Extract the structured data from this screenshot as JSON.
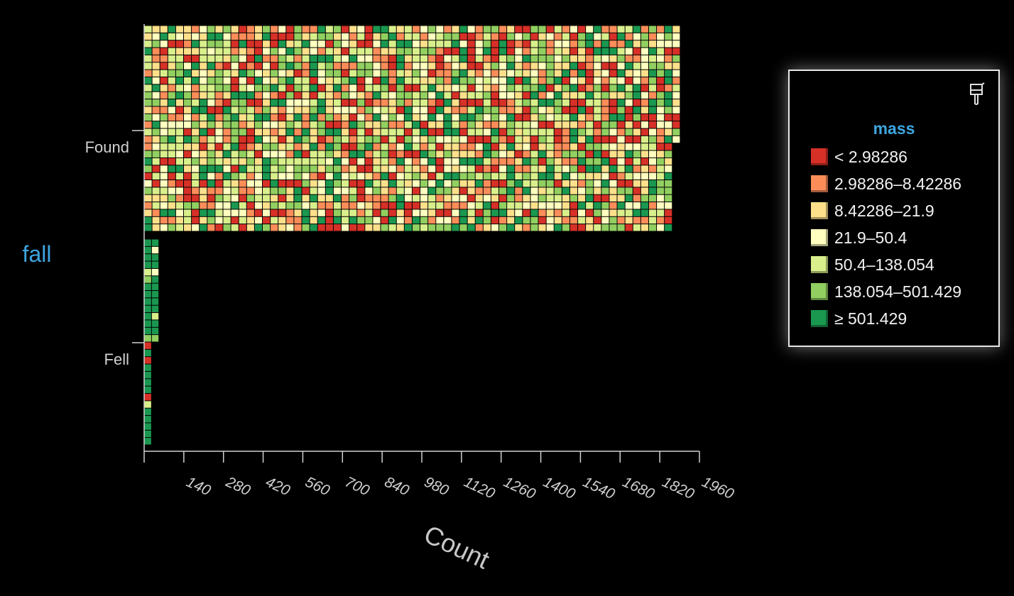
{
  "chart_data": {
    "type": "bar",
    "subtype": "unit-grid stacked bar (one cell per record, colored by mass bin)",
    "orientation": "horizontal",
    "categories": [
      "Found",
      "Fell"
    ],
    "values": [
      1892,
      42
    ],
    "x_axis": {
      "title": "Count",
      "ticks": [
        "140",
        "280",
        "420",
        "560",
        "700",
        "840",
        "980",
        "1120",
        "1260",
        "1400",
        "1540",
        "1680",
        "1820",
        "1960"
      ],
      "range": [
        0,
        1960
      ]
    },
    "y_axis": {
      "title": "fall"
    },
    "legend": {
      "title": "mass",
      "placement": "right",
      "items": [
        {
          "label": "< 2.98286",
          "color": "#d73027"
        },
        {
          "label": "2.98286–8.42286",
          "color": "#fc8d59"
        },
        {
          "label": "8.42286–21.9",
          "color": "#fee08b"
        },
        {
          "label": "21.9–50.4",
          "color": "#ffffbf"
        },
        {
          "label": "50.4–138.054",
          "color": "#d9ef8b"
        },
        {
          "label": "138.054–501.429",
          "color": "#91cf60"
        },
        {
          "label": "≥ 501.429",
          "color": "#1a9850"
        }
      ]
    },
    "grid": false
  },
  "legend_icon": "paintbrush-icon",
  "colors": {
    "background": "#000000",
    "axis": "#d0d0d0",
    "accent": "#3ea6e0"
  }
}
